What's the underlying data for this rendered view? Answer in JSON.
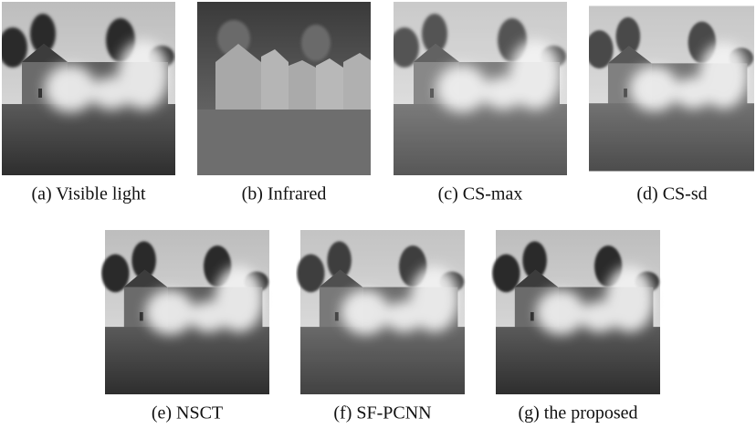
{
  "figure": {
    "panels": [
      {
        "caption": "(a) Visible light"
      },
      {
        "caption": "(b) Infrared"
      },
      {
        "caption": "(c) CS-max"
      },
      {
        "caption": "(d) CS-sd"
      },
      {
        "caption": "(e) NSCT"
      },
      {
        "caption": "(f) SF-PCNN"
      },
      {
        "caption": "(g) the proposed"
      }
    ]
  }
}
